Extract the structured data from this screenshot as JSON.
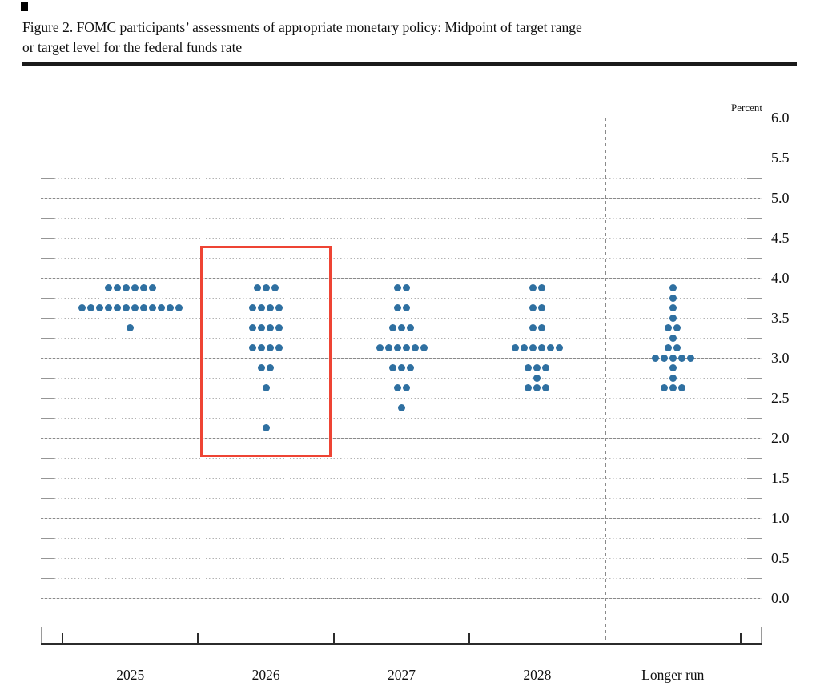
{
  "header": {
    "title_line1": "Figure 2. FOMC participants’ assessments of appropriate monetary policy: Midpoint of target range",
    "title_line2": "or target level for the federal funds rate"
  },
  "chart_data": {
    "type": "scatter",
    "subtype": "fomc-dot-plot",
    "title": "Figure 2. FOMC participants’ assessments of appropriate monetary policy: Midpoint of target range or target level for the federal funds rate",
    "unit_label": "Percent",
    "categories": [
      "2025",
      "2026",
      "2027",
      "2028",
      "Longer run"
    ],
    "y_axis": {
      "min": 0.0,
      "max": 6.0,
      "grid_step": 0.25,
      "label_step": 0.5,
      "tick_labels": [
        "6.0",
        "5.5",
        "5.0",
        "4.5",
        "4.0",
        "3.5",
        "3.0",
        "2.5",
        "2.0",
        "1.5",
        "1.0",
        "0.5",
        "0.0"
      ],
      "grid": true
    },
    "dots_per_category": 19,
    "series": [
      {
        "category": "2025",
        "dots": [
          {
            "value": 3.875,
            "count": 6
          },
          {
            "value": 3.625,
            "count": 12
          },
          {
            "value": 3.375,
            "count": 1
          }
        ]
      },
      {
        "category": "2026",
        "dots": [
          {
            "value": 3.875,
            "count": 3
          },
          {
            "value": 3.625,
            "count": 4
          },
          {
            "value": 3.375,
            "count": 4
          },
          {
            "value": 3.125,
            "count": 4
          },
          {
            "value": 2.875,
            "count": 2
          },
          {
            "value": 2.625,
            "count": 1
          },
          {
            "value": 2.125,
            "count": 1
          }
        ]
      },
      {
        "category": "2027",
        "dots": [
          {
            "value": 3.875,
            "count": 2
          },
          {
            "value": 3.625,
            "count": 2
          },
          {
            "value": 3.375,
            "count": 3
          },
          {
            "value": 3.125,
            "count": 6
          },
          {
            "value": 2.875,
            "count": 3
          },
          {
            "value": 2.625,
            "count": 2
          },
          {
            "value": 2.375,
            "count": 1
          }
        ]
      },
      {
        "category": "2028",
        "dots": [
          {
            "value": 3.875,
            "count": 2
          },
          {
            "value": 3.625,
            "count": 2
          },
          {
            "value": 3.375,
            "count": 2
          },
          {
            "value": 3.125,
            "count": 6
          },
          {
            "value": 2.875,
            "count": 3
          },
          {
            "value": 2.75,
            "count": 1
          },
          {
            "value": 2.625,
            "count": 3
          }
        ]
      },
      {
        "category": "Longer run",
        "dots": [
          {
            "value": 3.875,
            "count": 1
          },
          {
            "value": 3.75,
            "count": 1
          },
          {
            "value": 3.625,
            "count": 1
          },
          {
            "value": 3.5,
            "count": 1
          },
          {
            "value": 3.375,
            "count": 2
          },
          {
            "value": 3.25,
            "count": 1
          },
          {
            "value": 3.125,
            "count": 2
          },
          {
            "value": 3.0,
            "count": 5
          },
          {
            "value": 2.875,
            "count": 1
          },
          {
            "value": 2.75,
            "count": 1
          },
          {
            "value": 2.625,
            "count": 3
          }
        ]
      }
    ],
    "divider_before_category": "Longer run",
    "highlight": {
      "category": "2026",
      "value_range": [
        1.76,
        4.4
      ],
      "color": "#ee4434",
      "border_px": 3
    },
    "dot_color": "#2f70a1",
    "legend_position": "none"
  }
}
